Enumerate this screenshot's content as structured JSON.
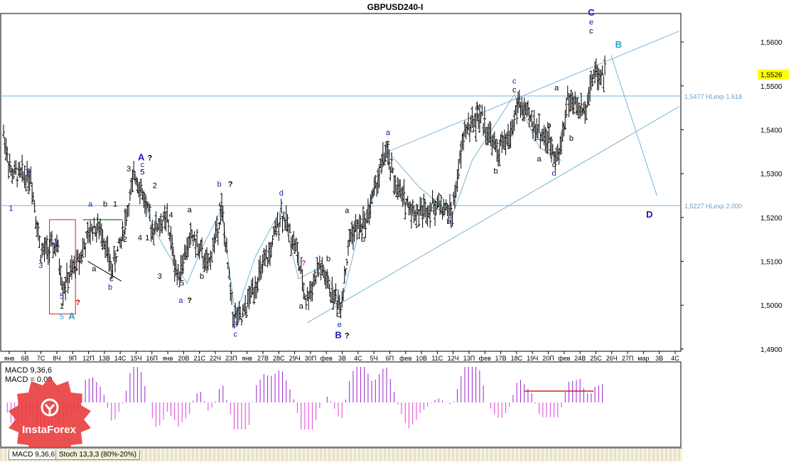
{
  "chart_data": {
    "type": "candlestick",
    "title": "GBPUSD240-I",
    "price_axis": {
      "ticks": [
        "1,5600",
        "1,5500",
        "1,5400",
        "1,5300",
        "1,5200",
        "1,5100",
        "1,5000",
        "1,4900"
      ],
      "range": [
        1.4895,
        1.5665
      ],
      "current_price": "1,5526",
      "current_price_color": "#ffff00"
    },
    "time_axis": {
      "ticks": [
        "янв",
        "6В",
        "7С",
        "8Ч",
        "9П",
        "12П",
        "13В",
        "14С",
        "15Ч",
        "16П",
        "янв",
        "20В",
        "21С",
        "22Ч",
        "23П",
        "янв",
        "27В",
        "28С",
        "29Ч",
        "30П",
        "фев",
        "3В",
        "4С",
        "5Ч",
        "6П",
        "фев",
        "10В",
        "11С",
        "12Ч",
        "13П",
        "фев",
        "17В",
        "18С",
        "19Ч",
        "20П",
        "фев",
        "24В",
        "25С",
        "26Ч",
        "27П",
        "мар",
        "3В",
        "4С"
      ]
    },
    "levels": [
      {
        "label": "1,5477 HLexp 1.618",
        "value": 1.5477
      },
      {
        "label": "1,5227 HLexp 2.000",
        "value": 1.5227
      }
    ],
    "wave_labels": [
      {
        "text": "1",
        "x": 6,
        "price": 1.5215,
        "color": "#1a1ab0"
      },
      {
        "text": "2",
        "x": 20,
        "price": 1.5295,
        "color": "#1a1ab0"
      },
      {
        "text": "3",
        "x": 30,
        "price": 1.5085,
        "color": "#1a1ab0"
      },
      {
        "text": "4",
        "x": 43,
        "price": 1.5135,
        "color": "#1a1ab0"
      },
      {
        "text": "5",
        "x": 47,
        "price": 1.5015,
        "color": "#1a1ab0"
      },
      {
        "text": "1",
        "x": 47,
        "price": 1.4992,
        "color": "#000000"
      },
      {
        "text": "?",
        "x": 60,
        "price": 1.5,
        "color": "#cc0000"
      },
      {
        "text": "5",
        "x": 47,
        "price": 1.4968,
        "color": "#2aa0c0"
      },
      {
        "text": "A",
        "x": 55,
        "price": 1.4968,
        "color": "#2aa0c0"
      },
      {
        "text": "a",
        "x": 70,
        "price": 1.5225,
        "color": "#1a1ab0"
      },
      {
        "text": "a",
        "x": 73,
        "price": 1.5077,
        "color": "#000000"
      },
      {
        "text": "b",
        "x": 82,
        "price": 1.5225,
        "color": "#000000"
      },
      {
        "text": "1",
        "x": 90,
        "price": 1.5225,
        "color": "#000000"
      },
      {
        "text": "c",
        "x": 87,
        "price": 1.5055,
        "color": "#000000"
      },
      {
        "text": "b",
        "x": 86,
        "price": 1.5035,
        "color": "#1a1ab0"
      },
      {
        "text": "2",
        "x": 98,
        "price": 1.5145,
        "color": "#000000"
      },
      {
        "text": "3",
        "x": 101,
        "price": 1.5305,
        "color": "#000000"
      },
      {
        "text": "A",
        "x": 111,
        "price": 1.533,
        "color": "#1a1ab0"
      },
      {
        "text": "?",
        "x": 118,
        "price": 1.533,
        "color": "#000000"
      },
      {
        "text": "c",
        "x": 112,
        "price": 1.5315,
        "color": "#1a1ab0"
      },
      {
        "text": "5",
        "x": 112,
        "price": 1.5298,
        "color": "#000000"
      },
      {
        "text": "2",
        "x": 122,
        "price": 1.5267,
        "color": "#000000"
      },
      {
        "text": "4",
        "x": 135,
        "price": 1.52,
        "color": "#000000"
      },
      {
        "text": "4",
        "x": 110,
        "price": 1.5148,
        "color": "#000000"
      },
      {
        "text": "1",
        "x": 116,
        "price": 1.5148,
        "color": "#000000"
      },
      {
        "text": "3",
        "x": 126,
        "price": 1.506,
        "color": "#000000"
      },
      {
        "text": "a",
        "x": 150,
        "price": 1.5212,
        "color": "#000000"
      },
      {
        "text": "5",
        "x": 144,
        "price": 1.5045,
        "color": "#000000"
      },
      {
        "text": "a",
        "x": 143,
        "price": 1.5005,
        "color": "#1a1ab0"
      },
      {
        "text": "?",
        "x": 150,
        "price": 1.5005,
        "color": "#000000"
      },
      {
        "text": "b",
        "x": 160,
        "price": 1.506,
        "color": "#000000"
      },
      {
        "text": "b",
        "x": 174,
        "price": 1.527,
        "color": "#1a1ab0"
      },
      {
        "text": "?",
        "x": 183,
        "price": 1.527,
        "color": "#000000"
      },
      {
        "text": "c",
        "x": 175,
        "price": 1.5225,
        "color": "#000000"
      },
      {
        "text": "3",
        "x": 187,
        "price": 1.495,
        "color": "#1a1ab0"
      },
      {
        "text": "c",
        "x": 187,
        "price": 1.4928,
        "color": "#1a1ab0"
      },
      {
        "text": "d",
        "x": 224,
        "price": 1.525,
        "color": "#1a1ab0"
      },
      {
        "text": "a",
        "x": 240,
        "price": 1.4992,
        "color": "#000000"
      },
      {
        "text": "b",
        "x": 262,
        "price": 1.51,
        "color": "#000000"
      },
      {
        "text": "c",
        "x": 270,
        "price": 1.4973,
        "color": "#000000"
      },
      {
        "text": "e",
        "x": 271,
        "price": 1.495,
        "color": "#1a1ab0"
      },
      {
        "text": "B",
        "x": 270,
        "price": 1.4925,
        "color": "#1a1ab0"
      },
      {
        "text": "?",
        "x": 277,
        "price": 1.4925,
        "color": "#000000"
      },
      {
        "text": "a",
        "x": 277,
        "price": 1.521,
        "color": "#000000"
      },
      {
        "text": "b",
        "x": 290,
        "price": 1.5145,
        "color": "#000000"
      },
      {
        "text": "a",
        "x": 310,
        "price": 1.5388,
        "color": "#1a1ab0"
      },
      {
        "text": "c",
        "x": 310,
        "price": 1.5365,
        "color": "#000000"
      },
      {
        "text": "b",
        "x": 359,
        "price": 1.5185,
        "color": "#1a1ab0"
      },
      {
        "text": "a",
        "x": 382,
        "price": 1.5445,
        "color": "#000000"
      },
      {
        "text": "b",
        "x": 397,
        "price": 1.53,
        "color": "#000000"
      },
      {
        "text": "c",
        "x": 412,
        "price": 1.5505,
        "color": "#1a1ab0"
      },
      {
        "text": "c",
        "x": 412,
        "price": 1.5485,
        "color": "#000000"
      },
      {
        "text": "a",
        "x": 432,
        "price": 1.5328,
        "color": "#000000"
      },
      {
        "text": "b",
        "x": 440,
        "price": 1.5405,
        "color": "#000000"
      },
      {
        "text": "c",
        "x": 444,
        "price": 1.5315,
        "color": "#000000"
      },
      {
        "text": "d",
        "x": 444,
        "price": 1.5295,
        "color": "#1a1ab0"
      },
      {
        "text": "a",
        "x": 446,
        "price": 1.549,
        "color": "#000000"
      },
      {
        "text": "b",
        "x": 458,
        "price": 1.5375,
        "color": "#000000"
      },
      {
        "text": "C",
        "x": 474,
        "price": 1.566,
        "color": "#1a1ab0"
      },
      {
        "text": "e",
        "x": 474,
        "price": 1.564,
        "color": "#1a1ab0"
      },
      {
        "text": "c",
        "x": 474,
        "price": 1.562,
        "color": "#000000"
      },
      {
        "text": "B",
        "x": 496,
        "price": 1.5587,
        "color": "#2aa0c0"
      },
      {
        "text": "D",
        "x": 521,
        "price": 1.52,
        "color": "#1a1ab0"
      },
      {
        "text": "?",
        "x": 242,
        "price": 1.509,
        "color": "#cc33cc"
      }
    ],
    "indicators": {
      "macd_params": "9,36,6",
      "macd_label": "MACD 9,36,6",
      "macd_value_label": "MACD = 0.00",
      "subwindow_tabs": [
        "MACD 9,36,6",
        "Stoch 13,3,3 (80%-20%)"
      ]
    }
  },
  "logo": {
    "text": "InstaForex",
    "color": "#e83838"
  }
}
